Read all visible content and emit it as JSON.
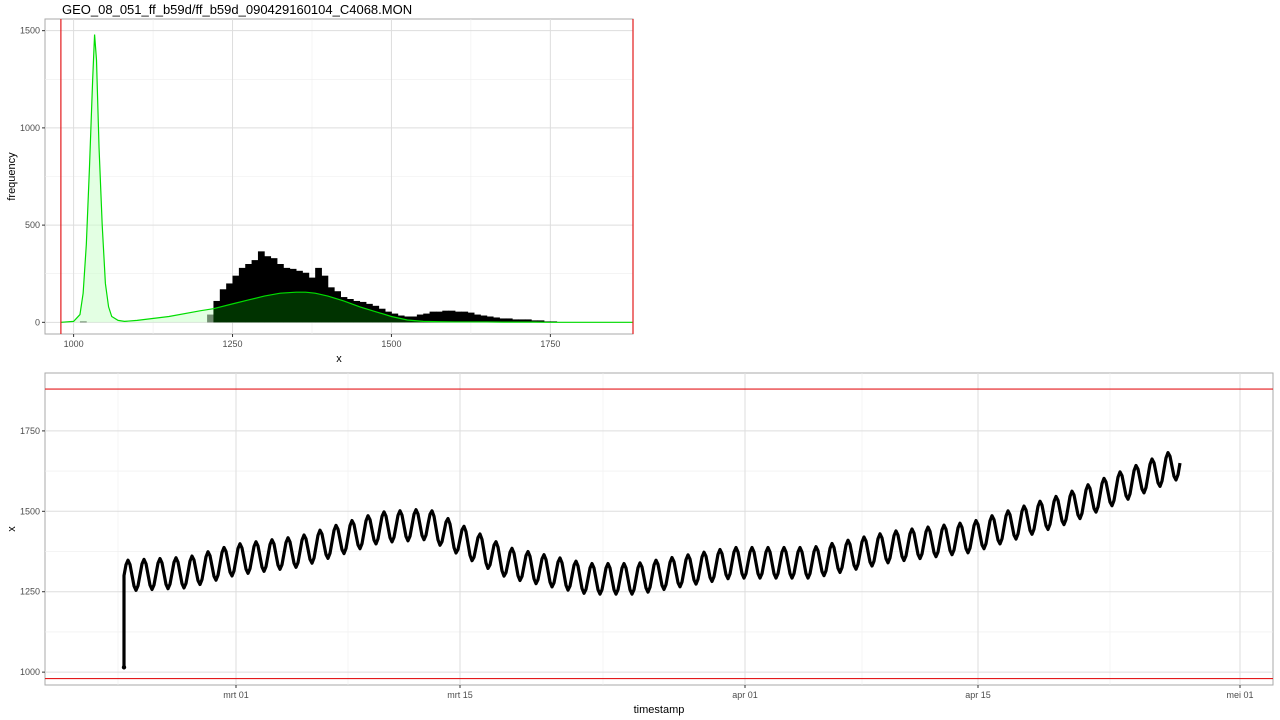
{
  "title": "GEO_08_051_ff_b59d/ff_b59d_090429160104_C4068.MON",
  "colors": {
    "threshold": "#e31a1c",
    "density_line": "#00dd00",
    "density_fill": "#ccffcc",
    "overlap_fill": "#003300",
    "bars": "#000000",
    "grid": "#dddddd",
    "panel_border": "#aaaaaa"
  },
  "chart_data": [
    {
      "type": "bar",
      "xlabel": "x",
      "ylabel": "frequency",
      "xlim": [
        955,
        1880
      ],
      "ylim": [
        -60,
        1560
      ],
      "x_ticks": [
        {
          "value": 1000,
          "label": "1000"
        },
        {
          "value": 1250,
          "label": "1250"
        },
        {
          "value": 1500,
          "label": "1500"
        },
        {
          "value": 1750,
          "label": "1750"
        }
      ],
      "y_ticks": [
        {
          "value": 0,
          "label": "0"
        },
        {
          "value": 500,
          "label": "500"
        },
        {
          "value": 1000,
          "label": "1000"
        },
        {
          "value": 1500,
          "label": "1500"
        }
      ],
      "grid": true,
      "vlines": [
        980,
        1880
      ],
      "bin_width": 10,
      "bins": [
        {
          "x": 1010,
          "count": 5
        },
        {
          "x": 1210,
          "count": 40
        },
        {
          "x": 1220,
          "count": 110
        },
        {
          "x": 1230,
          "count": 170
        },
        {
          "x": 1240,
          "count": 200
        },
        {
          "x": 1250,
          "count": 240
        },
        {
          "x": 1260,
          "count": 280
        },
        {
          "x": 1270,
          "count": 300
        },
        {
          "x": 1280,
          "count": 320
        },
        {
          "x": 1290,
          "count": 365
        },
        {
          "x": 1300,
          "count": 340
        },
        {
          "x": 1310,
          "count": 330
        },
        {
          "x": 1320,
          "count": 300
        },
        {
          "x": 1330,
          "count": 280
        },
        {
          "x": 1340,
          "count": 275
        },
        {
          "x": 1350,
          "count": 265
        },
        {
          "x": 1360,
          "count": 255
        },
        {
          "x": 1370,
          "count": 230
        },
        {
          "x": 1380,
          "count": 280
        },
        {
          "x": 1390,
          "count": 240
        },
        {
          "x": 1400,
          "count": 180
        },
        {
          "x": 1410,
          "count": 160
        },
        {
          "x": 1420,
          "count": 130
        },
        {
          "x": 1430,
          "count": 120
        },
        {
          "x": 1440,
          "count": 110
        },
        {
          "x": 1450,
          "count": 105
        },
        {
          "x": 1460,
          "count": 95
        },
        {
          "x": 1470,
          "count": 85
        },
        {
          "x": 1480,
          "count": 70
        },
        {
          "x": 1490,
          "count": 55
        },
        {
          "x": 1500,
          "count": 45
        },
        {
          "x": 1510,
          "count": 35
        },
        {
          "x": 1520,
          "count": 30
        },
        {
          "x": 1530,
          "count": 30
        },
        {
          "x": 1540,
          "count": 40
        },
        {
          "x": 1550,
          "count": 45
        },
        {
          "x": 1560,
          "count": 55
        },
        {
          "x": 1570,
          "count": 55
        },
        {
          "x": 1580,
          "count": 60
        },
        {
          "x": 1590,
          "count": 60
        },
        {
          "x": 1600,
          "count": 55
        },
        {
          "x": 1610,
          "count": 55
        },
        {
          "x": 1620,
          "count": 50
        },
        {
          "x": 1630,
          "count": 40
        },
        {
          "x": 1640,
          "count": 35
        },
        {
          "x": 1650,
          "count": 30
        },
        {
          "x": 1660,
          "count": 25
        },
        {
          "x": 1670,
          "count": 20
        },
        {
          "x": 1680,
          "count": 20
        },
        {
          "x": 1690,
          "count": 15
        },
        {
          "x": 1700,
          "count": 15
        },
        {
          "x": 1710,
          "count": 15
        },
        {
          "x": 1720,
          "count": 10
        },
        {
          "x": 1730,
          "count": 10
        },
        {
          "x": 1740,
          "count": 5
        },
        {
          "x": 1750,
          "count": 5
        }
      ],
      "density_curve": {
        "x": [
          980,
          1000,
          1010,
          1015,
          1020,
          1025,
          1030,
          1033,
          1036,
          1040,
          1045,
          1050,
          1055,
          1060,
          1070,
          1080,
          1100,
          1150,
          1200,
          1220,
          1250,
          1275,
          1300,
          1325,
          1350,
          1365,
          1380,
          1400,
          1425,
          1450,
          1475,
          1500,
          1525,
          1550,
          1575,
          1600,
          1625,
          1650,
          1675,
          1700,
          1725,
          1750,
          1775,
          1800,
          1880
        ],
        "y": [
          0,
          5,
          40,
          150,
          400,
          800,
          1250,
          1480,
          1350,
          900,
          500,
          200,
          80,
          30,
          10,
          5,
          10,
          30,
          60,
          70,
          95,
          115,
          135,
          150,
          155,
          155,
          150,
          135,
          110,
          80,
          55,
          30,
          12,
          5,
          3,
          2,
          2,
          2,
          1,
          1,
          1,
          0,
          0,
          0,
          0
        ]
      }
    },
    {
      "type": "line",
      "xlabel": "timestamp",
      "ylabel": "x",
      "ylim": [
        960,
        1930
      ],
      "x_ticks": [
        {
          "label": "mrt 01"
        },
        {
          "label": "mrt 15"
        },
        {
          "label": "apr 01"
        },
        {
          "label": "apr 15"
        },
        {
          "label": "mei 01"
        }
      ],
      "y_ticks": [
        {
          "value": 1000,
          "label": "1000"
        },
        {
          "value": 1250,
          "label": "1250"
        },
        {
          "value": 1500,
          "label": "1500"
        },
        {
          "value": 1750,
          "label": "1750"
        }
      ],
      "grid": true,
      "hlines": [
        980,
        1880
      ],
      "series": [
        {
          "daily_cycle": true,
          "start": "02-22",
          "end": "04-29",
          "first_point": {
            "t": "02-22",
            "value": 1015
          },
          "baseline": {
            "dates": [
              "02-22",
              "02-26",
              "03-01",
              "03-05",
              "03-10",
              "03-13",
              "03-18",
              "03-23",
              "03-26",
              "04-01",
              "04-06",
              "04-11",
              "04-16",
              "04-22",
              "04-29"
            ],
            "values": [
              1290,
              1300,
              1340,
              1365,
              1440,
              1450,
              1330,
              1280,
              1280,
              1330,
              1330,
              1380,
              1410,
              1500,
              1640
            ]
          },
          "daily_amplitude": 95
        }
      ]
    }
  ]
}
